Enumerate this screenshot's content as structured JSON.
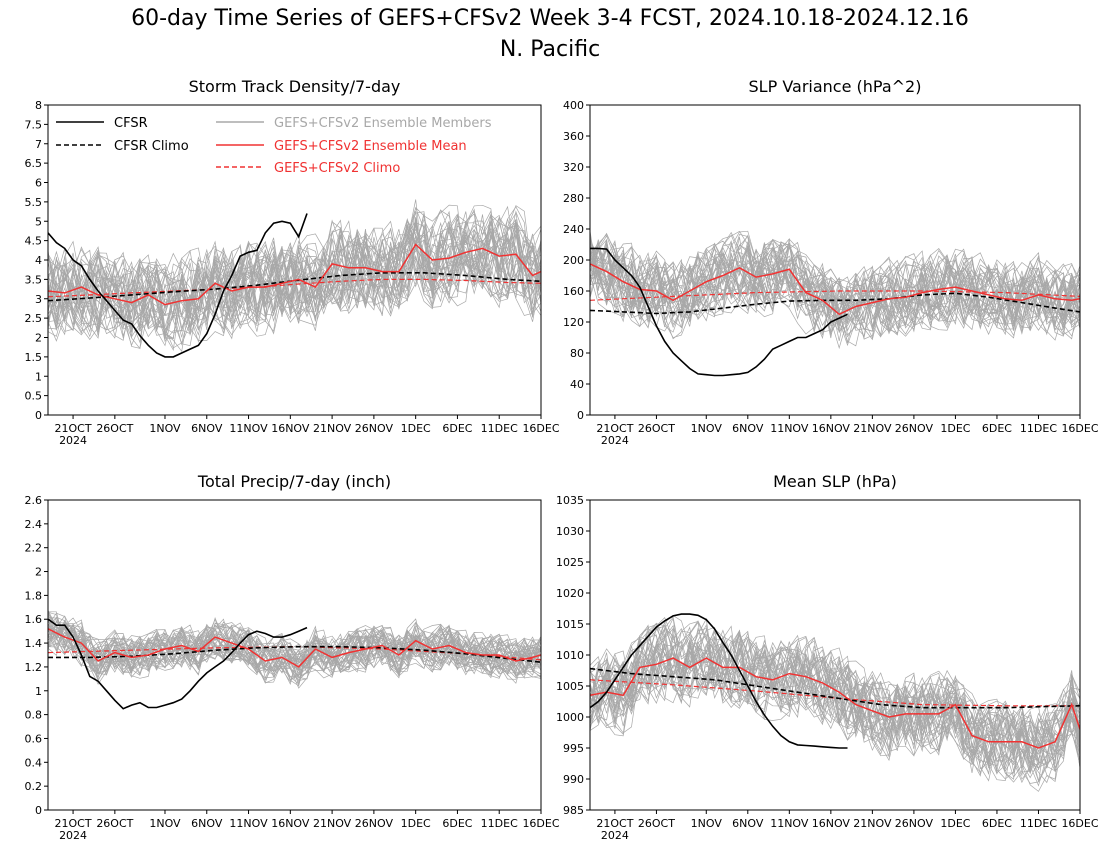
{
  "title": "60-day Time Series of GEFS+CFSv2 Week 3-4 FCST, 2024.10.18-2024.12.16",
  "subtitle": "N. Pacific",
  "colors": {
    "cfsr": "#000000",
    "members": "#a8a8a8",
    "ensemble_mean": "#f03232"
  },
  "legend": {
    "cfsr": "CFSR",
    "cfsr_climo": "CFSR Climo",
    "members": "GEFS+CFSv2 Ensemble Members",
    "ens_mean": "GEFS+CFSv2 Ensemble Mean",
    "ens_climo": "GEFS+CFSv2 Climo"
  },
  "x_ticks": [
    "21OCT",
    "26OCT",
    "1NOV",
    "6NOV",
    "11NOV",
    "16NOV",
    "21NOV",
    "26NOV",
    "1DEC",
    "6DEC",
    "11DEC",
    "16DEC"
  ],
  "x_tick_days": [
    3,
    8,
    14,
    19,
    24,
    29,
    34,
    39,
    44,
    49,
    54,
    59
  ],
  "x_year": "2024",
  "x_year_day": 3,
  "chart_data": [
    {
      "type": "line",
      "title": "Storm Track Density/7-day",
      "x_range_days": [
        0,
        59
      ],
      "ylim": [
        0,
        8
      ],
      "y_ticks": [
        0,
        0.5,
        1,
        1.5,
        2,
        2.5,
        3,
        3.5,
        4,
        4.5,
        5,
        5.5,
        6,
        6.5,
        7,
        7.5,
        8
      ],
      "y_tick_labels": [
        "0",
        "0.5",
        "1",
        "1.5",
        "2",
        "2.5",
        "3",
        "3.5",
        "4",
        "4.5",
        "5",
        "5.5",
        "6",
        "6.5",
        "7",
        "7.5",
        "8"
      ],
      "ensemble_members": {
        "count": 40,
        "center": "ensemble_mean",
        "spread": 1.1
      },
      "series": [
        {
          "name": "CFSR",
          "style": "solid-black",
          "x": [
            0,
            1,
            2,
            3,
            4,
            5,
            6,
            7,
            8,
            9,
            10,
            11,
            12,
            13,
            14,
            15,
            16,
            17,
            18,
            19,
            20,
            21,
            22,
            23,
            24,
            25,
            26,
            27,
            28,
            29,
            30,
            31
          ],
          "y": [
            4.7,
            4.45,
            4.3,
            4.0,
            3.85,
            3.5,
            3.2,
            2.95,
            2.7,
            2.45,
            2.35,
            2.05,
            1.8,
            1.6,
            1.5,
            1.5,
            1.6,
            1.7,
            1.8,
            2.1,
            2.6,
            3.2,
            3.6,
            4.1,
            4.2,
            4.25,
            4.7,
            4.95,
            5.0,
            4.95,
            4.6,
            5.2
          ]
        },
        {
          "name": "CFSR Climo",
          "style": "dashed-black",
          "x": [
            0,
            5,
            10,
            15,
            20,
            25,
            30,
            35,
            40,
            45,
            50,
            55,
            59
          ],
          "y": [
            2.95,
            3.02,
            3.1,
            3.18,
            3.25,
            3.35,
            3.48,
            3.6,
            3.67,
            3.67,
            3.6,
            3.5,
            3.45
          ]
        },
        {
          "name": "GEFS+CFSv2 Ensemble Mean",
          "style": "solid-red",
          "x": [
            0,
            2,
            4,
            6,
            8,
            10,
            12,
            14,
            16,
            18,
            20,
            22,
            24,
            26,
            28,
            30,
            32,
            34,
            36,
            38,
            40,
            42,
            44,
            46,
            48,
            50,
            52,
            54,
            56,
            58,
            59
          ],
          "y": [
            3.2,
            3.15,
            3.3,
            3.1,
            3.0,
            2.9,
            3.1,
            2.85,
            2.95,
            3.0,
            3.4,
            3.2,
            3.3,
            3.3,
            3.4,
            3.5,
            3.3,
            3.9,
            3.8,
            3.8,
            3.7,
            3.7,
            4.4,
            4.0,
            4.05,
            4.2,
            4.3,
            4.1,
            4.15,
            3.6,
            3.7
          ]
        },
        {
          "name": "GEFS+CFSv2 Climo",
          "style": "dashed-red",
          "x": [
            0,
            5,
            10,
            15,
            20,
            25,
            30,
            35,
            40,
            45,
            50,
            55,
            59
          ],
          "y": [
            3.05,
            3.1,
            3.15,
            3.2,
            3.25,
            3.3,
            3.38,
            3.45,
            3.5,
            3.5,
            3.47,
            3.42,
            3.4
          ]
        }
      ]
    },
    {
      "type": "line",
      "title": "SLP Variance (hPa^2)",
      "x_range_days": [
        0,
        59
      ],
      "ylim": [
        0,
        400
      ],
      "y_ticks": [
        0,
        40,
        80,
        120,
        160,
        200,
        240,
        280,
        320,
        360,
        400
      ],
      "y_tick_labels": [
        "0",
        "40",
        "80",
        "120",
        "160",
        "200",
        "240",
        "280",
        "320",
        "360",
        "400"
      ],
      "ensemble_members": {
        "count": 40,
        "center": "ensemble_mean",
        "spread": 45
      },
      "series": [
        {
          "name": "CFSR",
          "style": "solid-black",
          "x": [
            0,
            1,
            2,
            3,
            4,
            5,
            6,
            7,
            8,
            9,
            10,
            11,
            12,
            13,
            14,
            15,
            16,
            17,
            18,
            19,
            20,
            21,
            22,
            23,
            24,
            25,
            26,
            27,
            28,
            29,
            30,
            31
          ],
          "y": [
            215,
            215,
            214,
            200,
            190,
            180,
            165,
            140,
            115,
            95,
            80,
            70,
            60,
            53,
            52,
            51,
            51,
            52,
            53,
            55,
            62,
            72,
            85,
            90,
            95,
            100,
            100,
            105,
            110,
            120,
            125,
            130
          ]
        },
        {
          "name": "CFSR Climo",
          "style": "dashed-black",
          "x": [
            0,
            4,
            8,
            12,
            16,
            20,
            24,
            28,
            32,
            36,
            40,
            44,
            48,
            52,
            56,
            59
          ],
          "y": [
            135,
            133,
            131,
            133,
            138,
            143,
            147,
            148,
            148,
            150,
            155,
            157,
            152,
            145,
            138,
            133
          ]
        },
        {
          "name": "GEFS+CFSv2 Ensemble Mean",
          "style": "solid-red",
          "x": [
            0,
            2,
            4,
            6,
            8,
            10,
            12,
            14,
            16,
            18,
            20,
            22,
            24,
            26,
            28,
            30,
            32,
            34,
            36,
            38,
            40,
            42,
            44,
            46,
            48,
            50,
            52,
            54,
            56,
            58,
            59
          ],
          "y": [
            195,
            185,
            172,
            162,
            160,
            148,
            160,
            172,
            180,
            190,
            178,
            182,
            188,
            158,
            148,
            130,
            140,
            145,
            150,
            152,
            158,
            162,
            165,
            160,
            155,
            150,
            148,
            155,
            150,
            148,
            150
          ]
        },
        {
          "name": "GEFS+CFSv2 Climo",
          "style": "dashed-red",
          "x": [
            0,
            10,
            20,
            30,
            40,
            50,
            59
          ],
          "y": [
            148,
            153,
            158,
            160,
            160,
            158,
            153
          ]
        }
      ]
    },
    {
      "type": "line",
      "title": "Total Precip/7-day (inch)",
      "x_range_days": [
        0,
        59
      ],
      "ylim": [
        0,
        2.6
      ],
      "y_ticks": [
        0,
        0.2,
        0.4,
        0.6,
        0.8,
        1,
        1.2,
        1.4,
        1.6,
        1.8,
        2,
        2.2,
        2.4,
        2.6
      ],
      "y_tick_labels": [
        "0",
        "0.2",
        "0.4",
        "0.6",
        "0.8",
        "1",
        "1.2",
        "1.4",
        "1.6",
        "1.8",
        "2",
        "2.2",
        "2.4",
        "2.6"
      ],
      "ensemble_members": {
        "count": 40,
        "center": "ensemble_mean",
        "spread": 0.17
      },
      "series": [
        {
          "name": "CFSR",
          "style": "solid-black",
          "x": [
            0,
            1,
            2,
            3,
            4,
            5,
            6,
            7,
            8,
            9,
            10,
            11,
            12,
            13,
            14,
            15,
            16,
            17,
            18,
            19,
            20,
            21,
            22,
            23,
            24,
            25,
            26,
            27,
            28,
            29,
            30,
            31
          ],
          "y": [
            1.6,
            1.55,
            1.55,
            1.45,
            1.3,
            1.12,
            1.08,
            1.0,
            0.92,
            0.85,
            0.88,
            0.9,
            0.86,
            0.86,
            0.88,
            0.9,
            0.93,
            1.0,
            1.08,
            1.15,
            1.2,
            1.25,
            1.32,
            1.4,
            1.47,
            1.5,
            1.48,
            1.45,
            1.45,
            1.47,
            1.5,
            1.53
          ]
        },
        {
          "name": "CFSR Climo",
          "style": "dashed-black",
          "x": [
            0,
            5,
            10,
            15,
            20,
            25,
            30,
            35,
            40,
            45,
            50,
            55,
            59
          ],
          "y": [
            1.28,
            1.28,
            1.29,
            1.31,
            1.34,
            1.36,
            1.37,
            1.37,
            1.36,
            1.34,
            1.31,
            1.27,
            1.24
          ]
        },
        {
          "name": "GEFS+CFSv2 Ensemble Mean",
          "style": "solid-red",
          "x": [
            0,
            2,
            4,
            6,
            8,
            10,
            12,
            14,
            16,
            18,
            20,
            22,
            24,
            26,
            28,
            30,
            32,
            34,
            36,
            38,
            40,
            42,
            44,
            46,
            48,
            50,
            52,
            54,
            56,
            58,
            59
          ],
          "y": [
            1.52,
            1.45,
            1.4,
            1.25,
            1.32,
            1.28,
            1.3,
            1.35,
            1.38,
            1.33,
            1.45,
            1.4,
            1.35,
            1.25,
            1.28,
            1.2,
            1.35,
            1.28,
            1.32,
            1.35,
            1.38,
            1.3,
            1.42,
            1.35,
            1.38,
            1.32,
            1.3,
            1.3,
            1.25,
            1.28,
            1.3
          ]
        },
        {
          "name": "GEFS+CFSv2 Climo",
          "style": "dashed-red",
          "x": [
            0,
            10,
            20,
            30,
            40,
            50,
            59
          ],
          "y": [
            1.32,
            1.34,
            1.36,
            1.37,
            1.35,
            1.31,
            1.26
          ]
        }
      ]
    },
    {
      "type": "line",
      "title": "Mean SLP (hPa)",
      "x_range_days": [
        0,
        59
      ],
      "ylim": [
        985,
        1035
      ],
      "y_ticks": [
        985,
        990,
        995,
        1000,
        1005,
        1010,
        1015,
        1020,
        1025,
        1030,
        1035
      ],
      "y_tick_labels": [
        "985",
        "990",
        "995",
        "1000",
        "1005",
        "1010",
        "1015",
        "1020",
        "1025",
        "1030",
        "1035"
      ],
      "ensemble_members": {
        "count": 40,
        "center": "ensemble_mean",
        "spread": 6
      },
      "series": [
        {
          "name": "CFSR",
          "style": "solid-black",
          "x": [
            0,
            1,
            2,
            3,
            4,
            5,
            6,
            7,
            8,
            9,
            10,
            11,
            12,
            13,
            14,
            15,
            16,
            17,
            18,
            19,
            20,
            21,
            22,
            23,
            24,
            25,
            26,
            27,
            28,
            29,
            30,
            31
          ],
          "y": [
            1001.5,
            1002.5,
            1004,
            1006,
            1008,
            1010,
            1011.5,
            1013,
            1014.5,
            1015.5,
            1016.3,
            1016.6,
            1016.6,
            1016.4,
            1015.7,
            1014.2,
            1012,
            1010,
            1007.5,
            1005,
            1002.5,
            1000.3,
            998.5,
            997,
            996,
            995.5,
            995.4,
            995.3,
            995.2,
            995.1,
            995.0,
            995.0
          ]
        },
        {
          "name": "CFSR Climo",
          "style": "dashed-black",
          "x": [
            0,
            5,
            10,
            15,
            20,
            25,
            30,
            35,
            40,
            45,
            50,
            55,
            59
          ],
          "y": [
            1007.8,
            1007,
            1006.5,
            1006,
            1005,
            1004,
            1003,
            1002,
            1001.5,
            1001.5,
            1001.5,
            1001.7,
            1001.8
          ]
        },
        {
          "name": "GEFS+CFSv2 Ensemble Mean",
          "style": "solid-red",
          "x": [
            0,
            2,
            4,
            6,
            8,
            10,
            12,
            14,
            16,
            18,
            20,
            22,
            24,
            26,
            28,
            30,
            32,
            34,
            36,
            38,
            40,
            42,
            44,
            46,
            48,
            50,
            52,
            54,
            56,
            58,
            59
          ],
          "y": [
            1003.5,
            1004,
            1003.5,
            1008,
            1008.5,
            1009.5,
            1008,
            1009.5,
            1008,
            1008,
            1006.5,
            1006,
            1007,
            1006.5,
            1005.5,
            1004,
            1002,
            1001,
            1000,
            1000.5,
            1000.5,
            1000.5,
            1002,
            997,
            996,
            996,
            996,
            995,
            996,
            1002,
            998
          ]
        },
        {
          "name": "GEFS+CFSv2 Climo",
          "style": "dashed-red",
          "x": [
            0,
            10,
            20,
            30,
            40,
            50,
            59
          ],
          "y": [
            1006,
            1005.2,
            1004.2,
            1003,
            1002,
            1001.8,
            1001.8
          ]
        }
      ]
    }
  ]
}
